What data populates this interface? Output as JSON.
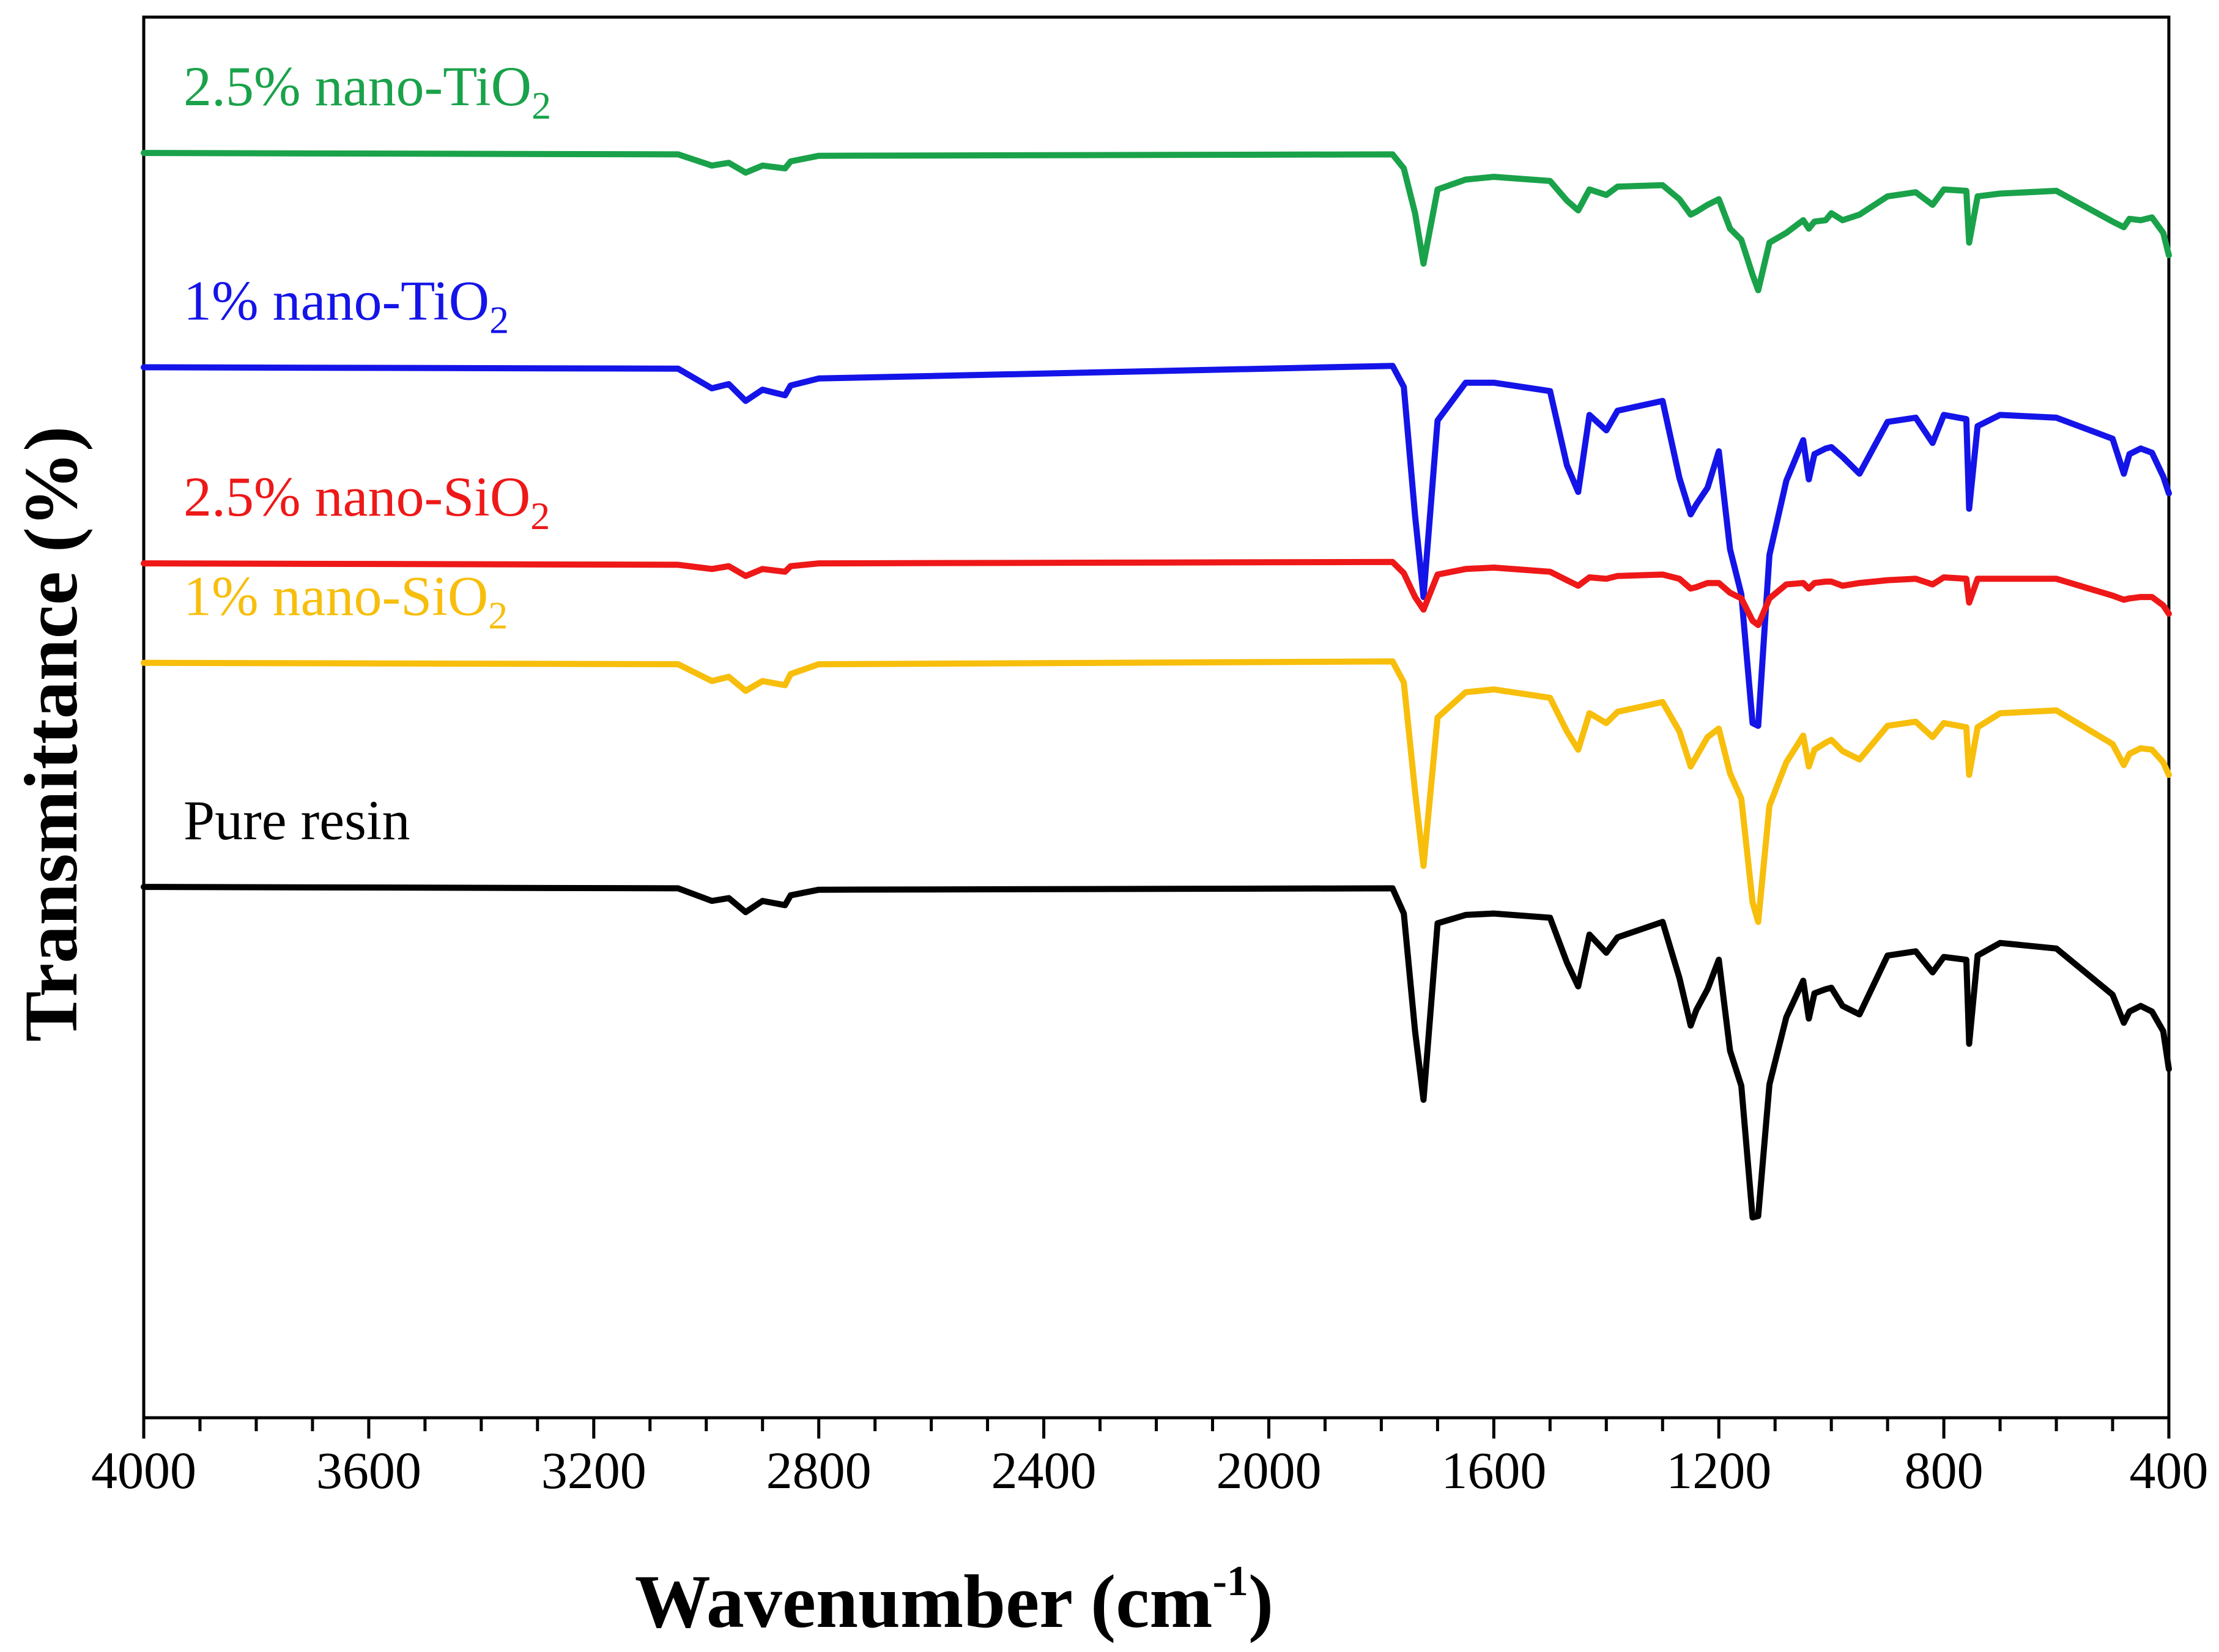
{
  "chart_data": {
    "type": "line",
    "title": "",
    "xlabel": "Wavenumber (cm",
    "xlabel_sup": "-1",
    "xlabel_close": ")",
    "ylabel": "Transmittance (%)",
    "xlim": [
      4000,
      400
    ],
    "ylim": [
      0,
      100
    ],
    "x_ticks": [
      4000,
      3600,
      3200,
      2800,
      2400,
      2000,
      1600,
      1200,
      800,
      400
    ],
    "x_tick_labels": [
      "4000",
      "3600",
      "3200",
      "2800",
      "2400",
      "2000",
      "1600",
      "1200",
      "800",
      "400"
    ],
    "y_ticks_shown": false,
    "grid": false,
    "legend": "inline labels above each curve",
    "series": [
      {
        "name": "2.5% nano-TiO2",
        "label_main": "2.5% nano-TiO",
        "label_sub": "2",
        "color": "#1aa24a",
        "x": [
          4000,
          3050,
          2990,
          2960,
          2930,
          2900,
          2860,
          2850,
          2800,
          1780,
          1760,
          1740,
          1725,
          1700,
          1650,
          1600,
          1500,
          1470,
          1450,
          1430,
          1400,
          1380,
          1300,
          1270,
          1250,
          1240,
          1220,
          1200,
          1180,
          1160,
          1140,
          1130,
          1110,
          1080,
          1050,
          1040,
          1030,
          1010,
          1000,
          980,
          950,
          900,
          850,
          820,
          800,
          760,
          755,
          740,
          700,
          600,
          500,
          480,
          470,
          450,
          430,
          410,
          400
        ],
        "values": [
          90.3,
          90.2,
          89.4,
          89.6,
          88.9,
          89.4,
          89.2,
          89.7,
          90.1,
          90.2,
          89.2,
          86.0,
          82.4,
          87.7,
          88.4,
          88.6,
          88.3,
          86.9,
          86.2,
          87.7,
          87.3,
          87.9,
          88.0,
          87.0,
          85.9,
          86.1,
          86.6,
          87.0,
          84.9,
          84.1,
          81.6,
          80.5,
          83.9,
          84.6,
          85.5,
          84.9,
          85.4,
          85.5,
          86.0,
          85.5,
          85.9,
          87.2,
          87.5,
          86.6,
          87.7,
          87.6,
          83.9,
          87.2,
          87.4,
          87.6,
          85.4,
          85.0,
          85.6,
          85.5,
          85.7,
          84.6,
          83.0
        ]
      },
      {
        "name": "1% nano-TiO2",
        "label_main": "1%  nano-TiO",
        "label_sub": "2",
        "color": "#1414e8",
        "x": [
          4000,
          3050,
          2990,
          2960,
          2930,
          2900,
          2860,
          2850,
          2800,
          1780,
          1760,
          1740,
          1725,
          1700,
          1650,
          1600,
          1500,
          1470,
          1450,
          1430,
          1400,
          1380,
          1300,
          1270,
          1250,
          1240,
          1220,
          1200,
          1180,
          1160,
          1140,
          1130,
          1110,
          1080,
          1050,
          1040,
          1030,
          1010,
          1000,
          980,
          950,
          900,
          850,
          820,
          800,
          760,
          755,
          740,
          700,
          600,
          500,
          480,
          470,
          450,
          430,
          410,
          400
        ],
        "values": [
          75.0,
          74.9,
          73.5,
          73.8,
          72.6,
          73.4,
          73.0,
          73.7,
          74.2,
          75.1,
          73.6,
          64.4,
          58.6,
          71.2,
          73.9,
          73.9,
          73.3,
          68.0,
          66.1,
          71.6,
          70.5,
          71.9,
          72.6,
          67.1,
          64.5,
          65.2,
          66.4,
          69.0,
          62.0,
          58.8,
          49.6,
          49.4,
          61.6,
          66.9,
          69.8,
          67.0,
          68.8,
          69.2,
          69.3,
          68.6,
          67.4,
          71.1,
          71.4,
          69.6,
          71.6,
          71.3,
          64.9,
          70.8,
          71.6,
          71.4,
          69.9,
          67.4,
          68.8,
          69.2,
          68.9,
          67.2,
          66.0
        ]
      },
      {
        "name": "2.5% nano-SiO2",
        "label_main": "2.5% nano-SiO",
        "label_sub": "2",
        "color": "#ee1818",
        "x": [
          4000,
          3050,
          2990,
          2960,
          2930,
          2900,
          2860,
          2850,
          2800,
          1780,
          1760,
          1740,
          1725,
          1700,
          1650,
          1600,
          1500,
          1470,
          1450,
          1430,
          1400,
          1380,
          1300,
          1270,
          1250,
          1240,
          1220,
          1200,
          1180,
          1160,
          1140,
          1130,
          1110,
          1080,
          1050,
          1040,
          1030,
          1010,
          1000,
          980,
          950,
          900,
          850,
          820,
          800,
          760,
          755,
          740,
          700,
          600,
          500,
          480,
          470,
          450,
          430,
          410,
          400
        ],
        "values": [
          61.0,
          60.9,
          60.6,
          60.8,
          60.1,
          60.6,
          60.4,
          60.8,
          61.0,
          61.1,
          60.3,
          58.6,
          57.7,
          60.2,
          60.6,
          60.7,
          60.4,
          59.8,
          59.4,
          60.0,
          59.9,
          60.1,
          60.2,
          59.9,
          59.2,
          59.3,
          59.6,
          59.6,
          58.9,
          58.5,
          56.9,
          56.6,
          58.5,
          59.5,
          59.6,
          59.2,
          59.6,
          59.7,
          59.7,
          59.4,
          59.6,
          59.8,
          59.9,
          59.5,
          60.0,
          59.9,
          58.2,
          59.9,
          59.9,
          59.9,
          58.7,
          58.4,
          58.5,
          58.6,
          58.6,
          58.0,
          57.4
        ]
      },
      {
        "name": "1% nano-SiO2",
        "label_main": "1% nano-SiO",
        "label_sub": "2",
        "color": "#f7be0c",
        "x": [
          4000,
          3050,
          2990,
          2960,
          2930,
          2900,
          2860,
          2850,
          2800,
          1780,
          1760,
          1740,
          1725,
          1700,
          1650,
          1600,
          1500,
          1470,
          1450,
          1430,
          1400,
          1380,
          1300,
          1270,
          1250,
          1240,
          1220,
          1200,
          1180,
          1160,
          1140,
          1130,
          1110,
          1080,
          1050,
          1040,
          1030,
          1010,
          1000,
          980,
          950,
          900,
          850,
          820,
          800,
          760,
          755,
          740,
          700,
          600,
          500,
          480,
          470,
          450,
          430,
          410,
          400
        ],
        "values": [
          53.9,
          53.8,
          52.6,
          52.9,
          51.9,
          52.6,
          52.3,
          53.1,
          53.8,
          54.0,
          52.5,
          44.7,
          39.4,
          50.0,
          51.8,
          52.0,
          51.4,
          49.0,
          47.7,
          50.3,
          49.6,
          50.4,
          51.1,
          49.0,
          46.5,
          47.2,
          48.6,
          49.2,
          46.0,
          44.2,
          36.8,
          35.4,
          43.7,
          46.8,
          48.7,
          46.5,
          47.7,
          48.2,
          48.4,
          47.6,
          47.0,
          49.4,
          49.7,
          48.6,
          49.6,
          49.3,
          45.9,
          49.3,
          50.3,
          50.5,
          48.1,
          46.6,
          47.4,
          47.8,
          47.7,
          46.8,
          45.9
        ]
      },
      {
        "name": "Pure resin",
        "label_main": "Pure resin",
        "label_sub": "",
        "color": "#000000",
        "x": [
          4000,
          3050,
          2990,
          2960,
          2930,
          2900,
          2860,
          2850,
          2800,
          1780,
          1760,
          1740,
          1725,
          1700,
          1650,
          1600,
          1500,
          1470,
          1450,
          1430,
          1400,
          1380,
          1300,
          1270,
          1250,
          1240,
          1220,
          1200,
          1180,
          1160,
          1140,
          1130,
          1110,
          1080,
          1050,
          1040,
          1030,
          1010,
          1000,
          980,
          950,
          900,
          850,
          820,
          800,
          760,
          755,
          740,
          700,
          600,
          500,
          480,
          470,
          450,
          430,
          410,
          400
        ],
        "values": [
          37.9,
          37.8,
          36.9,
          37.1,
          36.1,
          36.9,
          36.6,
          37.3,
          37.7,
          37.8,
          36.0,
          27.6,
          22.7,
          35.3,
          35.9,
          36.0,
          35.7,
          32.5,
          30.8,
          34.5,
          33.2,
          34.3,
          35.4,
          31.4,
          28.0,
          29.1,
          30.6,
          32.7,
          26.2,
          23.7,
          14.3,
          14.4,
          23.8,
          28.6,
          31.2,
          28.5,
          30.3,
          30.6,
          30.7,
          29.4,
          28.8,
          33.0,
          33.3,
          31.8,
          32.9,
          32.7,
          26.7,
          33.0,
          33.9,
          33.5,
          30.2,
          28.2,
          29.0,
          29.4,
          29.0,
          27.6,
          24.9
        ]
      }
    ]
  }
}
